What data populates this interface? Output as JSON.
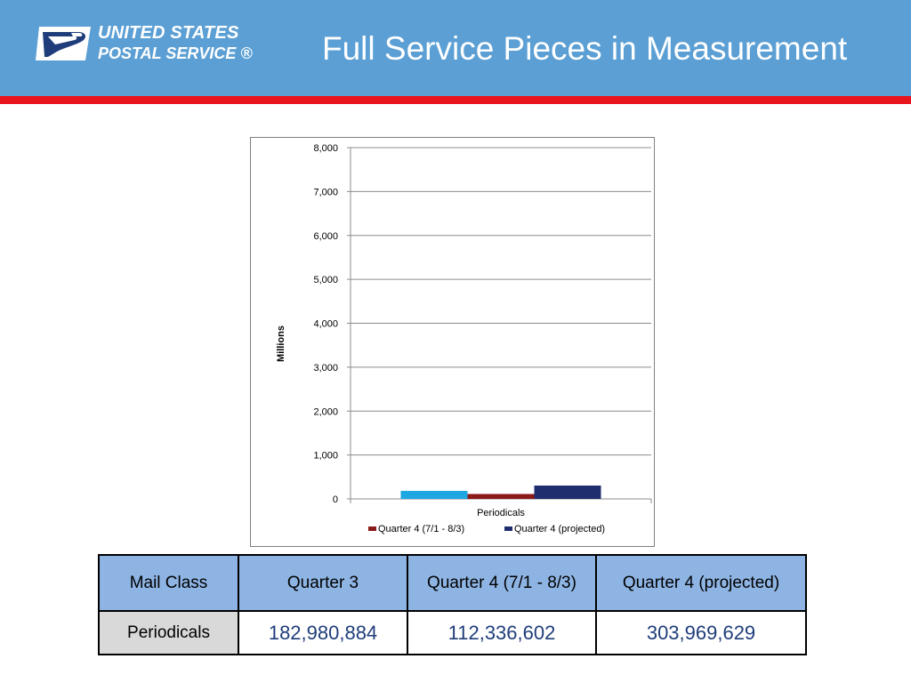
{
  "header": {
    "logo_line1": "UNITED STATES",
    "logo_line2": "POSTAL SERVICE ®",
    "title": "Full Service Pieces in Measurement",
    "colors": {
      "header_bg": "#5b9fd4",
      "accent_bar": "#e8141e"
    }
  },
  "chart_data": {
    "type": "bar",
    "categories": [
      "Periodicals"
    ],
    "series": [
      {
        "values": [
          183
        ],
        "color": "#1ea7e1"
      },
      {
        "name": "Quarter 4 (7/1 - 8/3)",
        "values": [
          112
        ],
        "color": "#8b1a1a"
      },
      {
        "name": "Quarter 4 (projected)",
        "values": [
          304
        ],
        "color": "#1f2d6e"
      }
    ],
    "ylabel": "Millions",
    "ylim": [
      0,
      8000
    ],
    "yticks": [
      "0",
      "1,000",
      "2,000",
      "3,000",
      "4,000",
      "5,000",
      "6,000",
      "7,000",
      "8,000"
    ],
    "grid": true,
    "legend": "bottom"
  },
  "table": {
    "headers": [
      "Mail Class",
      "Quarter 3",
      "Quarter 4 (7/1 - 8/3)",
      "Quarter 4 (projected)"
    ],
    "rows": [
      {
        "label": "Periodicals",
        "values": [
          "182,980,884",
          "112,336,602",
          "303,969,629"
        ]
      }
    ]
  }
}
